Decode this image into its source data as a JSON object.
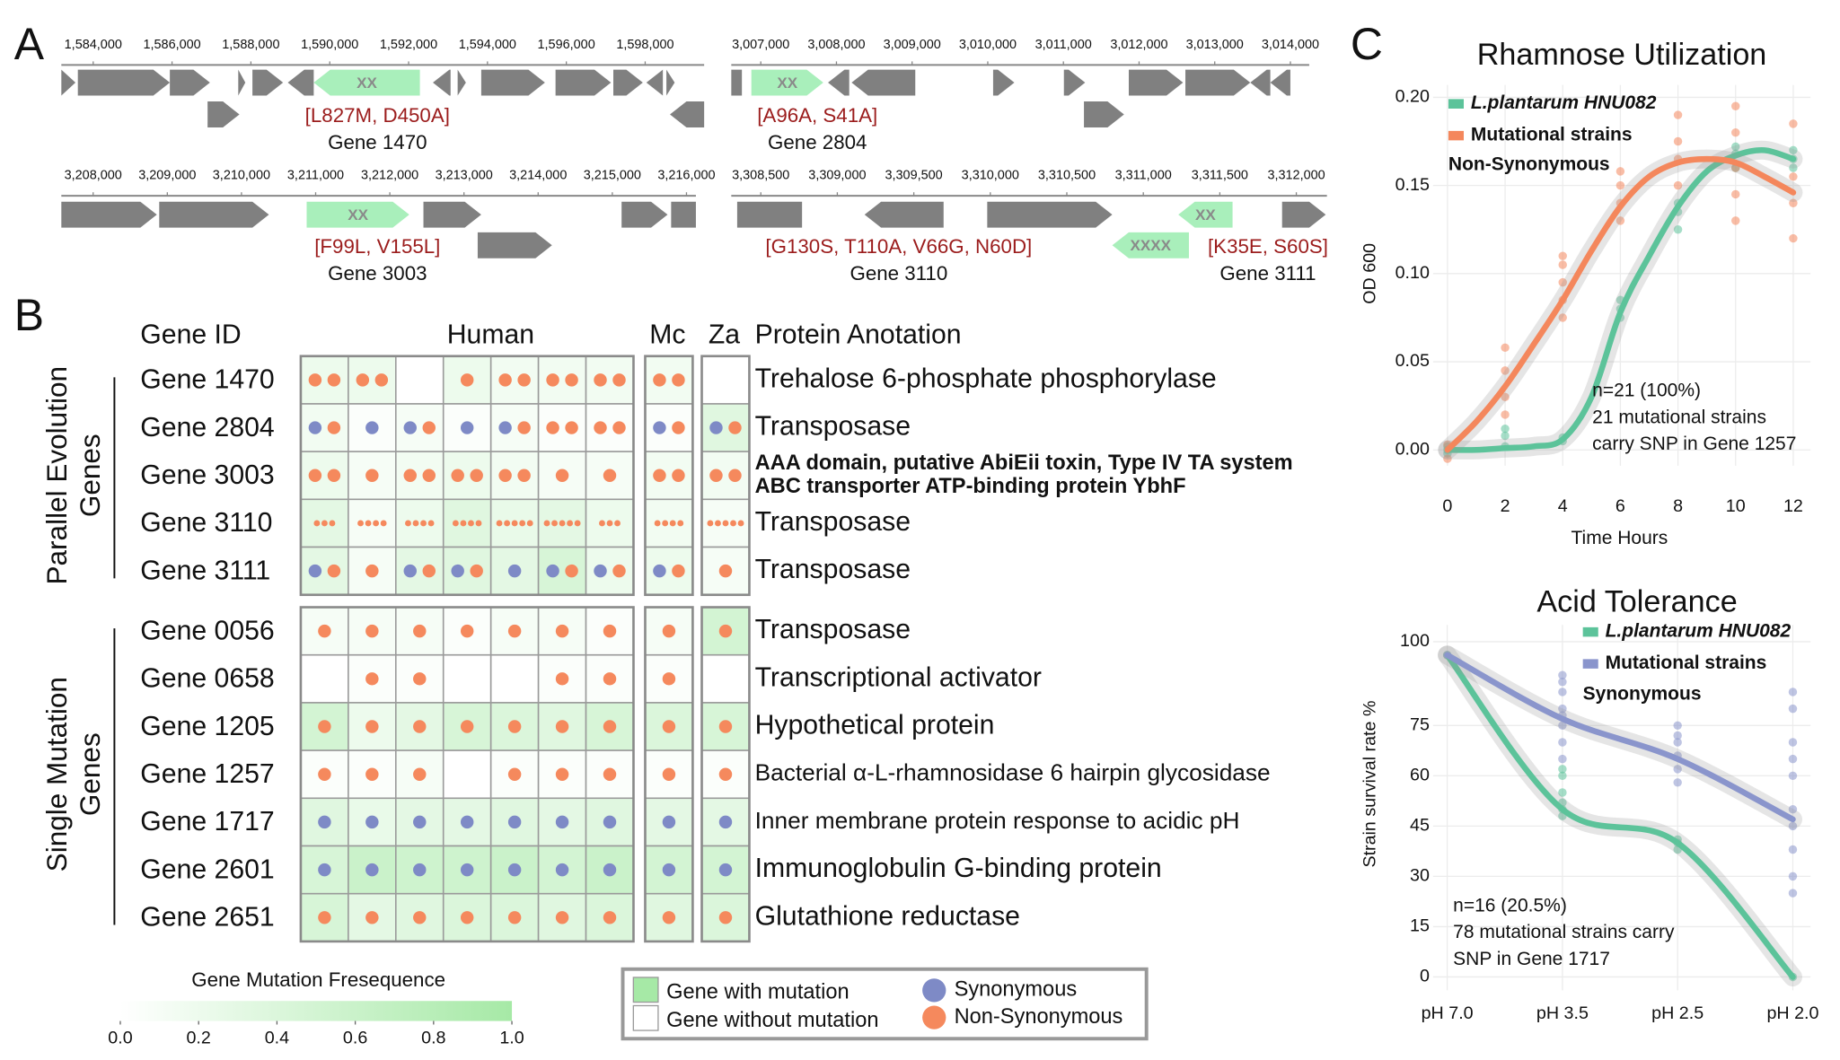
{
  "panel_labels": [
    "A",
    "B",
    "C"
  ],
  "gene_maps": [
    {
      "xlim": [
        1583192,
        1599496
      ],
      "xticks": [
        {
          "value": 1584000,
          "label": "1,584,000"
        },
        {
          "value": 1586000,
          "label": "1,586,000"
        },
        {
          "value": 1588000,
          "label": "1,588,000"
        },
        {
          "value": 1590000,
          "label": "1,590,000"
        },
        {
          "value": 1592000,
          "label": "1,592,000"
        },
        {
          "value": 1594000,
          "label": "1,594,000"
        },
        {
          "value": 1596000,
          "label": "1,596,000"
        },
        {
          "value": 1598000,
          "label": "1,598,000"
        }
      ],
      "genes": [
        {
          "marker": "XX",
          "mutations": "[L827M, D450A]",
          "label": "Gene 1470"
        }
      ]
    },
    {
      "xlim": [
        3006610,
        3014249
      ],
      "xticks": [
        {
          "value": 3007000,
          "label": "3,007,000"
        },
        {
          "value": 3008000,
          "label": "3,008,000"
        },
        {
          "value": 3009000,
          "label": "3,009,000"
        },
        {
          "value": 3010000,
          "label": "3,010,000"
        },
        {
          "value": 3011000,
          "label": "3,011,000"
        },
        {
          "value": 3012000,
          "label": "3,012,000"
        },
        {
          "value": 3013000,
          "label": "3,013,000"
        },
        {
          "value": 3014000,
          "label": "3,014,000"
        }
      ],
      "genes": [
        {
          "marker": "XX",
          "mutations": "[A96A, S41A]",
          "label": "Gene 2804"
        }
      ]
    },
    {
      "xlim": [
        3207571,
        3216127
      ],
      "xticks": [
        {
          "value": 3208000,
          "label": "3,208,000"
        },
        {
          "value": 3209000,
          "label": "3,209,000"
        },
        {
          "value": 3210000,
          "label": "3,210,000"
        },
        {
          "value": 3211000,
          "label": "3,211,000"
        },
        {
          "value": 3212000,
          "label": "3,212,000"
        },
        {
          "value": 3213000,
          "label": "3,213,000"
        },
        {
          "value": 3214000,
          "label": "3,214,000"
        },
        {
          "value": 3215000,
          "label": "3,215,000"
        },
        {
          "value": 3216000,
          "label": "3,216,000"
        }
      ],
      "genes": [
        {
          "marker": "XX",
          "mutations": "[F99L, V155L]",
          "label": "Gene 3003"
        }
      ]
    },
    {
      "xlim": [
        3308307,
        3312200
      ],
      "xticks": [
        {
          "value": 3308500,
          "label": "3,308,500"
        },
        {
          "value": 3309000,
          "label": "3,309,000"
        },
        {
          "value": 3309500,
          "label": "3,309,500"
        },
        {
          "value": 3310000,
          "label": "3,310,000"
        },
        {
          "value": 3310500,
          "label": "3,310,500"
        },
        {
          "value": 3311000,
          "label": "3,311,000"
        },
        {
          "value": 3311500,
          "label": "3,311,500"
        },
        {
          "value": 3312000,
          "label": "3,312,000"
        }
      ],
      "genes": [
        {
          "marker": "XXXX",
          "mutations": "[G130S, T110A, V66G, N60D]",
          "label": "Gene 3110"
        },
        {
          "marker": "XX",
          "mutations": "[K35E, S60S]",
          "label": "Gene 3111"
        }
      ]
    }
  ],
  "heatmap": {
    "headers": {
      "gene_id": "Gene ID",
      "human": "Human",
      "mc": "Mc",
      "za": "Za",
      "annotation": "Protein Anotation"
    },
    "groups": [
      {
        "label": [
          "Parallel Evolution",
          "Genes"
        ],
        "rows": [
          {
            "gene": "Gene 1470",
            "annotation": "Trehalose 6-phosphate phosphorylase",
            "frequency": [
              0.2,
              0.2,
              0,
              0.2,
              0.15,
              0.15,
              0.15,
              0.15,
              0
            ],
            "synonymous": [
              0,
              0,
              0,
              0,
              0,
              0,
              0,
              0,
              0
            ],
            "non_synonymous": [
              2,
              2,
              0,
              1,
              2,
              2,
              2,
              2,
              0
            ]
          },
          {
            "gene": "Gene 2804",
            "annotation": "Transposase",
            "frequency": [
              0.15,
              0.05,
              0.1,
              0.05,
              0.1,
              0.05,
              0.05,
              0.05,
              0.35
            ],
            "synonymous": [
              1,
              1,
              1,
              1,
              1,
              0,
              0,
              1,
              1
            ],
            "non_synonymous": [
              1,
              0,
              1,
              0,
              1,
              2,
              2,
              1,
              1
            ]
          },
          {
            "gene": "Gene 3003",
            "annotation": [
              "AAA domain, putative AbiEii toxin, Type IV TA system",
              "ABC transporter ATP-binding protein YbhF"
            ],
            "frequency": [
              0.2,
              0.1,
              0.15,
              0.2,
              0.15,
              0.1,
              0.1,
              0.15,
              0.15
            ],
            "synonymous": [
              0,
              0,
              0,
              0,
              0,
              0,
              0,
              0,
              0
            ],
            "non_synonymous": [
              2,
              1,
              2,
              2,
              2,
              1,
              1,
              2,
              2
            ]
          },
          {
            "gene": "Gene 3110",
            "annotation": "Transposase",
            "frequency": [
              0.3,
              0.1,
              0.2,
              0.35,
              0.25,
              0.3,
              0.2,
              0.15,
              0.1
            ],
            "synonymous": [
              0,
              0,
              0,
              0,
              0,
              0,
              0,
              0,
              0
            ],
            "non_synonymous": [
              3,
              4,
              4,
              4,
              5,
              5,
              3,
              4,
              5
            ]
          },
          {
            "gene": "Gene 3111",
            "annotation": "Transposase",
            "frequency": [
              0.3,
              0.1,
              0.3,
              0.35,
              0.3,
              0.45,
              0.2,
              0.2,
              0.1
            ],
            "synonymous": [
              1,
              0,
              1,
              1,
              1,
              1,
              1,
              1,
              0
            ],
            "non_synonymous": [
              1,
              1,
              1,
              1,
              0,
              1,
              1,
              1,
              1
            ]
          }
        ]
      },
      {
        "label": [
          "Single Mutation",
          "Genes"
        ],
        "rows": [
          {
            "gene": "Gene 0056",
            "annotation": "Transposase",
            "frequency": [
              0.1,
              0.1,
              0.1,
              0.05,
              0.1,
              0.1,
              0.05,
              0.1,
              0.5
            ],
            "synonymous": [
              0,
              0,
              0,
              0,
              0,
              0,
              0,
              0,
              0
            ],
            "non_synonymous": [
              1,
              1,
              1,
              1,
              1,
              1,
              1,
              1,
              1
            ]
          },
          {
            "gene": "Gene 0658",
            "annotation": "Transcriptional activator",
            "frequency": [
              0,
              0.05,
              0.05,
              0,
              0,
              0.05,
              0.05,
              0.05,
              0
            ],
            "synonymous": [
              0,
              0,
              0,
              0,
              0,
              0,
              0,
              0,
              0
            ],
            "non_synonymous": [
              0,
              1,
              1,
              0,
              0,
              1,
              1,
              1,
              0
            ]
          },
          {
            "gene": "Gene 1205",
            "annotation": "Hypothetical protein",
            "frequency": [
              0.5,
              0.2,
              0.3,
              0.45,
              0.4,
              0.35,
              0.45,
              0.4,
              0.45
            ],
            "synonymous": [
              0,
              0,
              0,
              0,
              0,
              0,
              0,
              0,
              0
            ],
            "non_synonymous": [
              1,
              1,
              1,
              1,
              1,
              1,
              1,
              1,
              1
            ]
          },
          {
            "gene": "Gene 1257",
            "annotation": "Bacterial α-L-rhamnosidase 6 hairpin glycosidase",
            "frequency": [
              0.05,
              0.05,
              0.1,
              0,
              0.05,
              0.05,
              0.05,
              0.05,
              0.05
            ],
            "synonymous": [
              0,
              0,
              0,
              0,
              0,
              0,
              0,
              0,
              0
            ],
            "non_synonymous": [
              1,
              1,
              1,
              0,
              1,
              1,
              1,
              1,
              1
            ]
          },
          {
            "gene": "Gene 1717",
            "annotation": "Inner membrane protein response to acidic pH",
            "frequency": [
              0.35,
              0.25,
              0.3,
              0.3,
              0.35,
              0.3,
              0.35,
              0.3,
              0.3
            ],
            "synonymous": [
              1,
              1,
              1,
              1,
              1,
              1,
              1,
              1,
              1
            ],
            "non_synonymous": [
              0,
              0,
              0,
              0,
              0,
              0,
              0,
              0,
              0
            ]
          },
          {
            "gene": "Gene 2601",
            "annotation": "Immunoglobulin G-binding protein",
            "frequency": [
              0.45,
              0.6,
              0.55,
              0.55,
              0.6,
              0.5,
              0.6,
              0.5,
              0.5
            ],
            "synonymous": [
              1,
              1,
              1,
              1,
              1,
              1,
              1,
              1,
              1
            ],
            "non_synonymous": [
              0,
              0,
              0,
              0,
              0,
              0,
              0,
              0,
              0
            ]
          },
          {
            "gene": "Gene 2651",
            "annotation": "Glutathione reductase",
            "frequency": [
              0.45,
              0.3,
              0.35,
              0.4,
              0.4,
              0.35,
              0.4,
              0.35,
              0.4
            ],
            "synonymous": [
              0,
              0,
              0,
              0,
              0,
              0,
              0,
              0,
              0
            ],
            "non_synonymous": [
              1,
              1,
              1,
              1,
              1,
              1,
              1,
              1,
              1
            ]
          }
        ]
      }
    ],
    "colorbar": {
      "title": "Gene Mutation Fresequence",
      "lim": [
        0,
        1
      ],
      "ticks": [
        {
          "value": 0,
          "label": "0.0"
        },
        {
          "value": 0.2,
          "label": "0.2"
        },
        {
          "value": 0.4,
          "label": "0.4"
        },
        {
          "value": 0.6,
          "label": "0.6"
        },
        {
          "value": 0.8,
          "label": "0.8"
        },
        {
          "value": 1,
          "label": "1.0"
        }
      ],
      "colors": [
        "#ffffff",
        "#a6e9a6"
      ]
    },
    "legend": {
      "with_mutation": "Gene with mutation",
      "without_mutation": "Gene without mutation",
      "synonymous": "Synonymous",
      "non_synonymous": "Non-Synonymous",
      "synonymous_color": "#7e8ac6",
      "non_synonymous_color": "#f5895d"
    }
  },
  "chart_data": [
    {
      "type": "line",
      "title": "Rhamnose Utilization",
      "subtitle": "Non-Synonymous",
      "xlabel": "Time Hours",
      "ylabel": "OD 600",
      "x": [
        0,
        1,
        2,
        3,
        4,
        5,
        6,
        7,
        8,
        9,
        10,
        11,
        12
      ],
      "xlim": [
        -0.5,
        12.6
      ],
      "xticks": [
        0,
        2,
        4,
        6,
        8,
        10,
        12
      ],
      "ylim": [
        -0.009,
        0.207
      ],
      "yticks": [
        {
          "value": 0,
          "label": "0.00"
        },
        {
          "value": 0.05,
          "label": "0.05"
        },
        {
          "value": 0.1,
          "label": "0.10"
        },
        {
          "value": 0.15,
          "label": "0.15"
        },
        {
          "value": 0.2,
          "label": "0.20"
        }
      ],
      "grid": true,
      "series": [
        {
          "name": "L.plantarum HNU082",
          "color": "#5cc39a",
          "values": [
            0.0,
            0.0,
            0.001,
            0.002,
            0.006,
            0.03,
            0.078,
            0.11,
            0.138,
            0.158,
            0.167,
            0.17,
            0.165
          ],
          "points": {
            "x": [
              0,
              0,
              0,
              2,
              2,
              2,
              4,
              4,
              6,
              6,
              6,
              8,
              8,
              8,
              10,
              10,
              10,
              12,
              12,
              12
            ],
            "y": [
              0.0,
              0.002,
              -0.002,
              0.002,
              0.008,
              0.012,
              0.005,
              0.007,
              0.075,
              0.08,
              0.085,
              0.125,
              0.135,
              0.14,
              0.16,
              0.168,
              0.172,
              0.16,
              0.165,
              0.17
            ]
          }
        },
        {
          "name": "Mutational strains",
          "color": "#f4875c",
          "values": [
            0.0,
            0.016,
            0.036,
            0.06,
            0.085,
            0.113,
            0.138,
            0.155,
            0.163,
            0.165,
            0.163,
            0.155,
            0.146
          ],
          "points": {
            "x": [
              0,
              0,
              2,
              2,
              2,
              2,
              4,
              4,
              4,
              4,
              4,
              6,
              6,
              6,
              6,
              8,
              8,
              8,
              8,
              10,
              10,
              10,
              10,
              10,
              12,
              12,
              12,
              12
            ],
            "y": [
              -0.005,
              0.003,
              0.02,
              0.03,
              0.045,
              0.058,
              0.075,
              0.085,
              0.095,
              0.105,
              0.11,
              0.13,
              0.14,
              0.15,
              0.158,
              0.15,
              0.165,
              0.175,
              0.19,
              0.13,
              0.145,
              0.16,
              0.18,
              0.195,
              0.12,
              0.14,
              0.155,
              0.185
            ]
          }
        }
      ],
      "annotation": [
        "n=21 (100%)",
        "21 mutational strains",
        "carry SNP in Gene 1257"
      ]
    },
    {
      "type": "line",
      "title": "Acid Tolerance",
      "subtitle": "Synonymous",
      "ylabel": "Strain survival rate %",
      "categories": [
        "pH 7.0",
        "pH 3.5",
        "pH 2.5",
        "pH 2.0"
      ],
      "ylim": [
        -4,
        105
      ],
      "yticks": [
        0,
        15,
        30,
        45,
        60,
        75,
        100
      ],
      "grid": true,
      "series": [
        {
          "name": "L.plantarum HNU082",
          "color": "#5cc39a",
          "values": [
            96,
            50,
            40,
            0
          ],
          "points": [
            [
              96
            ],
            [
              48,
              50,
              52,
              55,
              60,
              62
            ],
            [
              38,
              40,
              41
            ],
            [
              0
            ]
          ]
        },
        {
          "name": "Mutational strains",
          "color": "#8a95cc",
          "values": [
            96,
            77,
            65,
            47
          ],
          "points": [
            [
              96
            ],
            [
              65,
              70,
              75,
              78,
              80,
              85,
              88,
              90
            ],
            [
              58,
              62,
              66,
              70,
              72,
              75
            ],
            [
              25,
              30,
              38,
              45,
              50,
              60,
              65,
              70,
              80,
              85
            ]
          ]
        }
      ],
      "annotation": [
        "n=16 (20.5%)",
        "78 mutational strains carry",
        "SNP in Gene 1717"
      ]
    }
  ]
}
